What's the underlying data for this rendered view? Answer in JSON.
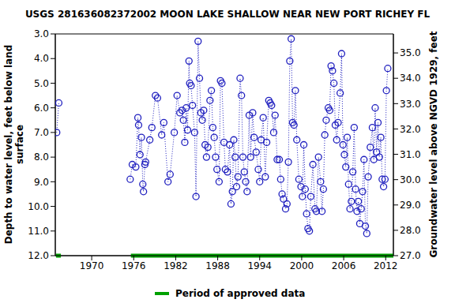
{
  "chart_data": {
    "type": "line",
    "title": "USGS 281636082372002 MOON LAKE SHALLOW NEAR NEW PORT RICHEY FL",
    "y_label": [
      "Depth to water level, feet below land",
      "surface"
    ],
    "y2_label": "Groundwater level above NGVD 1929, feet",
    "color": "#1f1fbf",
    "marker": "circle",
    "line_style": "dotted",
    "xlim": [
      1964.8,
      2013.1
    ],
    "xticks": [
      1970,
      1976,
      1982,
      1988,
      1994,
      2000,
      2006,
      2012
    ],
    "ylim": [
      3,
      12
    ],
    "yticks": [
      {
        "value": 3,
        "label": "3.0"
      },
      {
        "value": 4,
        "label": "4.0"
      },
      {
        "value": 5,
        "label": "5.0"
      },
      {
        "value": 6,
        "label": "6.0"
      },
      {
        "value": 7,
        "label": "7.0"
      },
      {
        "value": 8,
        "label": "8.0"
      },
      {
        "value": 9,
        "label": "9.0"
      },
      {
        "value": 10,
        "label": "10.0"
      },
      {
        "value": 11,
        "label": "11.0"
      },
      {
        "value": 12,
        "label": "12.0"
      }
    ],
    "y2lim": [
      27,
      35.75
    ],
    "y2ticks": [
      {
        "value": 27,
        "label": "27.0"
      },
      {
        "value": 28,
        "label": "28.0"
      },
      {
        "value": 29,
        "label": "29.0"
      },
      {
        "value": 30,
        "label": "30.0"
      },
      {
        "value": 31,
        "label": "31.0"
      },
      {
        "value": 32,
        "label": "32.0"
      },
      {
        "value": 33,
        "label": "33.0"
      },
      {
        "value": 34,
        "label": "34.0"
      },
      {
        "value": 35,
        "label": "35.0"
      }
    ],
    "x": [
      1965.0,
      1965.3,
      1970,
      1975.5,
      1975.8,
      1976.3,
      1976.6,
      1976.7,
      1976.9,
      1977.1,
      1977.3,
      1977.4,
      1977.6,
      1977.7,
      1978.3,
      1978.6,
      1979.1,
      1979.4,
      1980.0,
      1980.3,
      1980.9,
      1981.2,
      1981.8,
      1982.2,
      1982.6,
      1982.9,
      1983.1,
      1983.3,
      1983.5,
      1983.7,
      1983.9,
      1984.0,
      1984.2,
      1984.4,
      1984.7,
      1984.9,
      1985.2,
      1985.4,
      1985.6,
      1985.8,
      1986.0,
      1986.2,
      1986.4,
      1986.6,
      1986.9,
      1987.1,
      1987.3,
      1987.5,
      1987.7,
      1987.9,
      1988.2,
      1988.4,
      1988.6,
      1988.9,
      1989.1,
      1989.4,
      1989.7,
      1989.9,
      1990.1,
      1990.3,
      1990.5,
      1990.7,
      1990.9,
      1991.2,
      1991.4,
      1991.6,
      1991.8,
      1992.0,
      1992.2,
      1992.5,
      1992.7,
      1993.0,
      1993.2,
      1993.5,
      1993.8,
      1994.0,
      1994.2,
      1994.5,
      1994.8,
      1995.0,
      1995.3,
      1995.5,
      1995.7,
      1996.0,
      1996.2,
      1996.5,
      1996.8,
      1997.0,
      1997.2,
      1997.4,
      1997.7,
      1997.9,
      1998.1,
      1998.3,
      1998.5,
      1998.7,
      1998.9,
      1999.1,
      1999.3,
      1999.6,
      1999.9,
      2000.1,
      2000.3,
      2000.5,
      2000.7,
      2000.9,
      2001.1,
      2001.3,
      2001.6,
      2001.9,
      2002.1,
      2002.4,
      2002.7,
      2002.9,
      2003.1,
      2003.3,
      2003.5,
      2003.8,
      2004.0,
      2004.2,
      2004.4,
      2004.6,
      2004.8,
      2005.0,
      2005.2,
      2005.5,
      2005.7,
      2005.9,
      2006.1,
      2006.3,
      2006.5,
      2006.7,
      2006.9,
      2007.1,
      2007.3,
      2007.5,
      2007.7,
      2007.9,
      2008.1,
      2008.3,
      2008.5,
      2008.7,
      2008.9,
      2009.1,
      2009.3,
      2009.5,
      2009.8,
      2010.1,
      2010.3,
      2010.5,
      2010.7,
      2010.9,
      2011.1,
      2011.3,
      2011.5,
      2011.7,
      2011.9,
      2012.1,
      2012.3
    ],
    "values": [
      7.0,
      5.8,
      null,
      8.9,
      8.3,
      8.4,
      6.4,
      6.7,
      7.9,
      7.2,
      9.1,
      9.4,
      8.3,
      8.2,
      7.3,
      6.8,
      5.5,
      5.6,
      7.1,
      6.6,
      9.0,
      8.7,
      7.0,
      5.5,
      6.2,
      6.1,
      6.5,
      7.4,
      6.0,
      6.9,
      4.1,
      5.0,
      5.1,
      5.9,
      7.0,
      9.6,
      3.3,
      4.8,
      6.2,
      6.5,
      6.1,
      7.5,
      8.0,
      7.6,
      5.7,
      5.3,
      6.8,
      7.2,
      8.0,
      8.5,
      9.0,
      4.9,
      5.0,
      7.4,
      8.5,
      8.6,
      7.5,
      9.9,
      9.4,
      7.3,
      8.0,
      9.2,
      8.8,
      4.8,
      5.5,
      8.0,
      8.6,
      9.0,
      9.4,
      6.3,
      8.0,
      6.2,
      7.2,
      7.8,
      8.5,
      9.0,
      7.3,
      6.4,
      8.8,
      7.4,
      5.7,
      5.8,
      5.9,
      7.0,
      6.3,
      8.1,
      8.1,
      8.9,
      9.5,
      9.7,
      10.1,
      9.9,
      8.2,
      4.1,
      3.2,
      6.6,
      6.7,
      5.3,
      7.3,
      8.9,
      9.2,
      9.6,
      7.5,
      9.3,
      10.3,
      10.9,
      11.0,
      9.6,
      8.3,
      10.1,
      10.2,
      8.0,
      9.0,
      10.2,
      9.3,
      7.1,
      6.5,
      6.0,
      6.1,
      4.3,
      4.5,
      5.0,
      6.7,
      7.3,
      6.6,
      5.4,
      3.8,
      7.5,
      7.9,
      8.4,
      7.2,
      9.1,
      10.1,
      9.8,
      8.6,
      6.8,
      9.3,
      10.2,
      9.8,
      10.7,
      10.1,
      9.4,
      8.1,
      10.8,
      11.1,
      8.8,
      7.6,
      6.8,
      8.1,
      6.0,
      7.8,
      6.6,
      8.0,
      7.2,
      8.9,
      9.2,
      8.9,
      5.3,
      4.4
    ],
    "approved_data": {
      "label": "Period of approved data",
      "color": "#00a000",
      "periods": [
        [
          1964.9,
          1965.6
        ],
        [
          1975.6,
          2013.1
        ]
      ]
    }
  }
}
